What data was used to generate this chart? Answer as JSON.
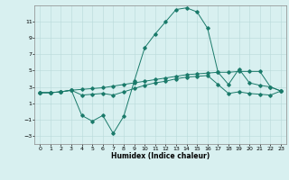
{
  "xlabel": "Humidex (Indice chaleur)",
  "background_color": "#d8f0f0",
  "grid_color": "#b8dada",
  "line_color": "#1a7a6a",
  "xlim": [
    -0.5,
    23.5
  ],
  "ylim": [
    -4,
    13
  ],
  "xticks": [
    0,
    1,
    2,
    3,
    4,
    5,
    6,
    7,
    8,
    9,
    10,
    11,
    12,
    13,
    14,
    15,
    16,
    17,
    18,
    19,
    20,
    21,
    22,
    23
  ],
  "yticks": [
    -3,
    -1,
    1,
    3,
    5,
    7,
    9,
    11
  ],
  "line1_x": [
    0,
    1,
    2,
    3,
    4,
    5,
    6,
    7,
    8,
    9,
    10,
    11,
    12,
    13,
    14,
    15,
    16,
    17,
    18,
    19,
    20,
    21,
    22,
    23
  ],
  "line1_y": [
    2.3,
    2.3,
    2.4,
    2.6,
    2.7,
    2.8,
    2.9,
    3.1,
    3.3,
    3.5,
    3.7,
    3.9,
    4.1,
    4.3,
    4.5,
    4.6,
    4.7,
    4.8,
    4.8,
    4.9,
    4.9,
    4.9,
    3.0,
    2.5
  ],
  "line2_x": [
    0,
    1,
    2,
    3,
    4,
    5,
    6,
    7,
    8,
    9,
    10,
    11,
    12,
    13,
    14,
    15,
    16,
    17,
    18,
    19,
    20,
    21,
    22,
    23
  ],
  "line2_y": [
    2.3,
    2.3,
    2.4,
    2.6,
    -0.5,
    -1.2,
    -0.5,
    -2.7,
    -0.6,
    3.7,
    7.8,
    9.5,
    11.0,
    12.5,
    12.7,
    12.2,
    10.2,
    4.8,
    3.3,
    5.2,
    3.5,
    3.2,
    3.0,
    2.5
  ],
  "line3_x": [
    0,
    1,
    2,
    3,
    4,
    5,
    6,
    7,
    8,
    9,
    10,
    11,
    12,
    13,
    14,
    15,
    16,
    17,
    18,
    19,
    20,
    21,
    22,
    23
  ],
  "line3_y": [
    2.3,
    2.3,
    2.4,
    2.6,
    2.0,
    2.1,
    2.2,
    2.0,
    2.4,
    2.8,
    3.2,
    3.5,
    3.7,
    4.0,
    4.2,
    4.3,
    4.4,
    3.3,
    2.2,
    2.4,
    2.2,
    2.1,
    2.0,
    2.5
  ]
}
